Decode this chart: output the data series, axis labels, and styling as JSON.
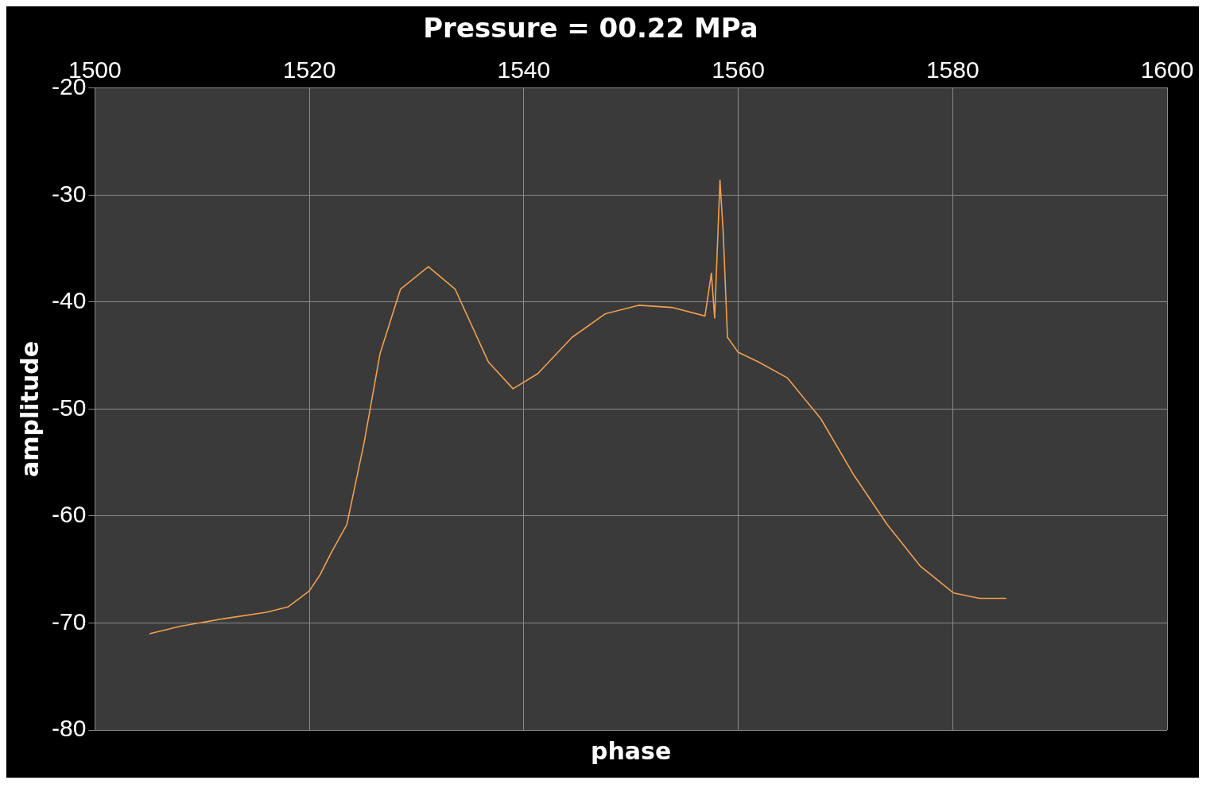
{
  "chart_data": {
    "type": "line",
    "title": "Pressure = 00.22 MPa",
    "xlabel": "phase",
    "ylabel": "amplitude",
    "series": [
      {
        "color": "#f0a050",
        "x": [
          1505.1,
          1508,
          1512,
          1516,
          1518,
          1520,
          1521,
          1522,
          1523.5,
          1525.1,
          1526.6,
          1528.5,
          1531.1,
          1533.6,
          1536.7,
          1539.0,
          1541.3,
          1544.5,
          1547.6,
          1550.7,
          1553.8,
          1556.9,
          1557.5,
          1557.8,
          1558.3,
          1558.6,
          1559.0,
          1560.0,
          1561.9,
          1564.6,
          1567.7,
          1570.8,
          1573.9,
          1577.0,
          1580.1,
          1582.5,
          1585.0
        ],
        "values": [
          -71,
          -70.3,
          -69.6,
          -69,
          -68.5,
          -67,
          -65.5,
          -63.5,
          -60.8,
          -53.2,
          -44.8,
          -38.8,
          -36.7,
          -38.8,
          -45.6,
          -48.1,
          -46.7,
          -43.3,
          -41.1,
          -40.3,
          -40.5,
          -41.3,
          -37.3,
          -41.5,
          -28.6,
          -33.5,
          -43.3,
          -44.7,
          -45.6,
          -47.1,
          -50.9,
          -56.2,
          -60.8,
          -64.7,
          -67.2,
          -67.7,
          -67.7
        ]
      }
    ],
    "xlim": [
      1500,
      1600
    ],
    "xticks": [
      1500,
      1520,
      1540,
      1560,
      1580,
      1600
    ],
    "ylim": [
      -80,
      -20
    ],
    "yticks": [
      -80,
      -70,
      -60,
      -50,
      -40,
      -30,
      -20
    ],
    "grid": true,
    "legend": false,
    "marker": "none",
    "line_style": "solid"
  }
}
